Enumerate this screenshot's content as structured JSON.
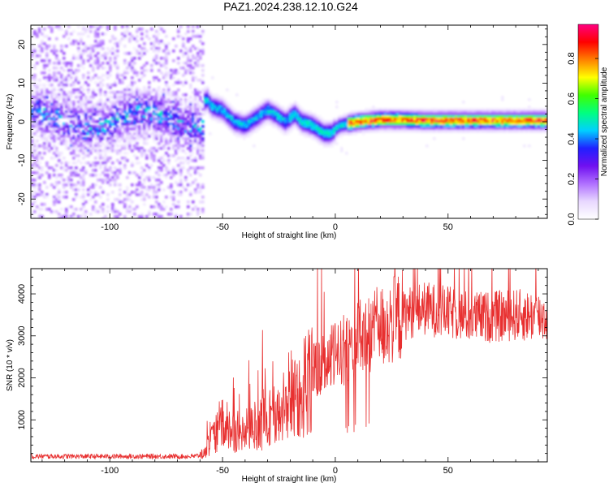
{
  "title": "PAZ1.2024.238.12.10.G24",
  "chart_data": [
    {
      "type": "heatmap",
      "title": "PAZ1.2024.238.12.10.G24",
      "xlabel": "Height of straight line (km)",
      "ylabel": "Frequency (Hz)",
      "xlim": [
        -135,
        94
      ],
      "ylim": [
        -25,
        25
      ],
      "xticks": [
        -100,
        -50,
        0,
        50
      ],
      "xtick_labels": [
        "-100",
        "-50",
        "0",
        "50"
      ],
      "yticks": [
        -20,
        -10,
        0,
        10,
        20
      ],
      "ytick_labels": [
        "-20",
        "-10",
        "0",
        "10",
        "20"
      ],
      "colorbar": {
        "label": "Normalized spectral amplitude",
        "range": [
          0,
          0.97
        ],
        "ticks": [
          0,
          0.2,
          0.4,
          0.6,
          0.8
        ],
        "tick_labels": [
          "0.0",
          "0.2",
          "0.4",
          "0.6",
          "0.8"
        ],
        "colormap": [
          "#ffffff",
          "#e8d8ff",
          "#b070ff",
          "#7010f0",
          "#2020ff",
          "#00d0ff",
          "#00ff80",
          "#40ff00",
          "#ffff00",
          "#ff8000",
          "#ff0000",
          "#ff0080"
        ]
      },
      "ridge": {
        "x": [
          -62,
          -57,
          -55,
          -50,
          -45,
          -40,
          -35,
          -30,
          -27,
          -22,
          -18,
          -15,
          -10,
          -5,
          -2,
          2,
          10,
          20,
          30,
          40,
          50,
          60,
          70,
          80,
          94
        ],
        "y": [
          2,
          6,
          4,
          3,
          0,
          -1,
          1,
          3,
          2,
          0,
          2,
          0,
          -1,
          -3,
          -3,
          -1,
          0,
          0.5,
          0.5,
          0.3,
          0.3,
          0.3,
          0.3,
          0.3,
          0.3
        ]
      }
    },
    {
      "type": "line",
      "xlabel": "Height of straight line (km)",
      "ylabel": "SNR (10 * v/v)",
      "xlim": [
        -135,
        94
      ],
      "ylim": [
        0,
        4600
      ],
      "xticks": [
        -100,
        -50,
        0,
        50
      ],
      "xtick_labels": [
        "-100",
        "-50",
        "0",
        "50"
      ],
      "yticks": [
        1000,
        2000,
        3000,
        4000
      ],
      "ytick_labels": [
        "1000",
        "2000",
        "3000",
        "4000"
      ],
      "color": "#e83030",
      "envelope": {
        "x": [
          -135,
          -62,
          -58,
          -55,
          -50,
          -45,
          -40,
          -35,
          -30,
          -25,
          -20,
          -15,
          -10,
          -5,
          0,
          5,
          10,
          20,
          30,
          35,
          40,
          50,
          60,
          70,
          80,
          94
        ],
        "y": [
          130,
          130,
          200,
          500,
          900,
          750,
          650,
          900,
          1150,
          1050,
          1650,
          1700,
          2150,
          2300,
          2550,
          2700,
          2900,
          3200,
          3500,
          3600,
          3650,
          3550,
          3450,
          3450,
          3500,
          3450
        ]
      }
    }
  ]
}
